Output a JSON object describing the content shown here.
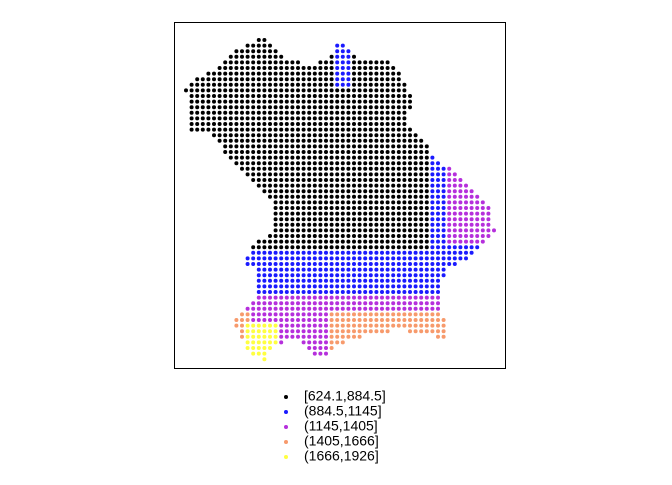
{
  "legend": {
    "items": [
      {
        "label": "[624.1,884.5]",
        "color": "#000000"
      },
      {
        "label": "(884.5,1145]",
        "color": "#1a1aff"
      },
      {
        "label": "(1145,1405]",
        "color": "#b52fdc"
      },
      {
        "label": "(1405,1666]",
        "color": "#f79a6c"
      },
      {
        "label": "(1666,1926]",
        "color": "#ffff40"
      }
    ]
  }
}
